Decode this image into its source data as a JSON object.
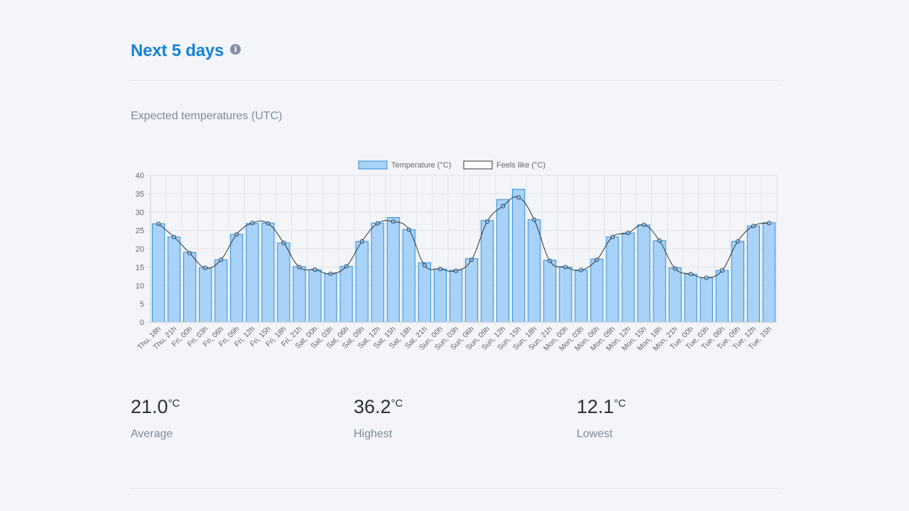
{
  "header": {
    "title": "Next 5 days",
    "info_icon": "info-icon"
  },
  "chart_section": {
    "subtitle": "Expected temperatures (UTC)"
  },
  "chart_data": {
    "type": "bar",
    "title": "",
    "xlabel": "",
    "ylabel": "",
    "ylim": [
      0,
      40
    ],
    "yticks": [
      0,
      5,
      10,
      15,
      20,
      25,
      30,
      35,
      40
    ],
    "grid": true,
    "legend_position": "top-center",
    "categories": [
      "Thu, 18h",
      "Thu, 21h",
      "Fri, 00h",
      "Fri, 03h",
      "Fri, 06h",
      "Fri, 09h",
      "Fri, 12h",
      "Fri, 15h",
      "Fri, 18h",
      "Fri, 21h",
      "Sat, 00h",
      "Sat, 03h",
      "Sat, 06h",
      "Sat, 09h",
      "Sat, 12h",
      "Sat, 15h",
      "Sat, 18h",
      "Sat, 21h",
      "Sun, 00h",
      "Sun, 03h",
      "Sun, 06h",
      "Sun, 09h",
      "Sun, 12h",
      "Sun, 15h",
      "Sun, 18h",
      "Sun, 21h",
      "Mon, 00h",
      "Mon, 03h",
      "Mon, 06h",
      "Mon, 09h",
      "Mon, 12h",
      "Mon, 15h",
      "Mon, 18h",
      "Mon, 21h",
      "Tue, 00h",
      "Tue, 03h",
      "Tue, 06h",
      "Tue, 09h",
      "Tue, 12h",
      "Tue, 15h"
    ],
    "series": [
      {
        "name": "Temperature (°C)",
        "kind": "bar",
        "color": "#a8d2f7",
        "border": "#2f8fd8",
        "values": [
          26.8,
          23.2,
          19.0,
          14.8,
          17.0,
          23.9,
          26.9,
          27.0,
          21.6,
          15.1,
          14.3,
          13.2,
          15.2,
          22.0,
          27.0,
          28.5,
          25.2,
          16.2,
          14.5,
          14.2,
          17.3,
          27.7,
          33.4,
          36.2,
          27.9,
          16.9,
          15.0,
          14.2,
          17.2,
          23.2,
          24.3,
          26.5,
          22.2,
          14.8,
          13.1,
          12.1,
          14.1,
          22.0,
          26.2,
          27.1
        ]
      },
      {
        "name": "Feels like (°C)",
        "kind": "line",
        "color": "#333333",
        "values": [
          26.8,
          23.2,
          18.8,
          14.8,
          17.0,
          23.9,
          27.0,
          26.9,
          21.6,
          15.0,
          14.3,
          13.2,
          15.2,
          22.0,
          26.9,
          27.4,
          25.2,
          15.5,
          14.5,
          14.0,
          17.0,
          27.4,
          31.6,
          34.0,
          27.9,
          16.7,
          15.0,
          14.2,
          17.0,
          23.2,
          24.3,
          26.5,
          22.2,
          14.6,
          13.1,
          12.1,
          14.1,
          22.0,
          26.2,
          27.0
        ]
      }
    ]
  },
  "stats": [
    {
      "value": "21.0",
      "unit": "°C",
      "label": "Average"
    },
    {
      "value": "36.2",
      "unit": "°C",
      "label": "Highest"
    },
    {
      "value": "12.1",
      "unit": "°C",
      "label": "Lowest"
    }
  ]
}
